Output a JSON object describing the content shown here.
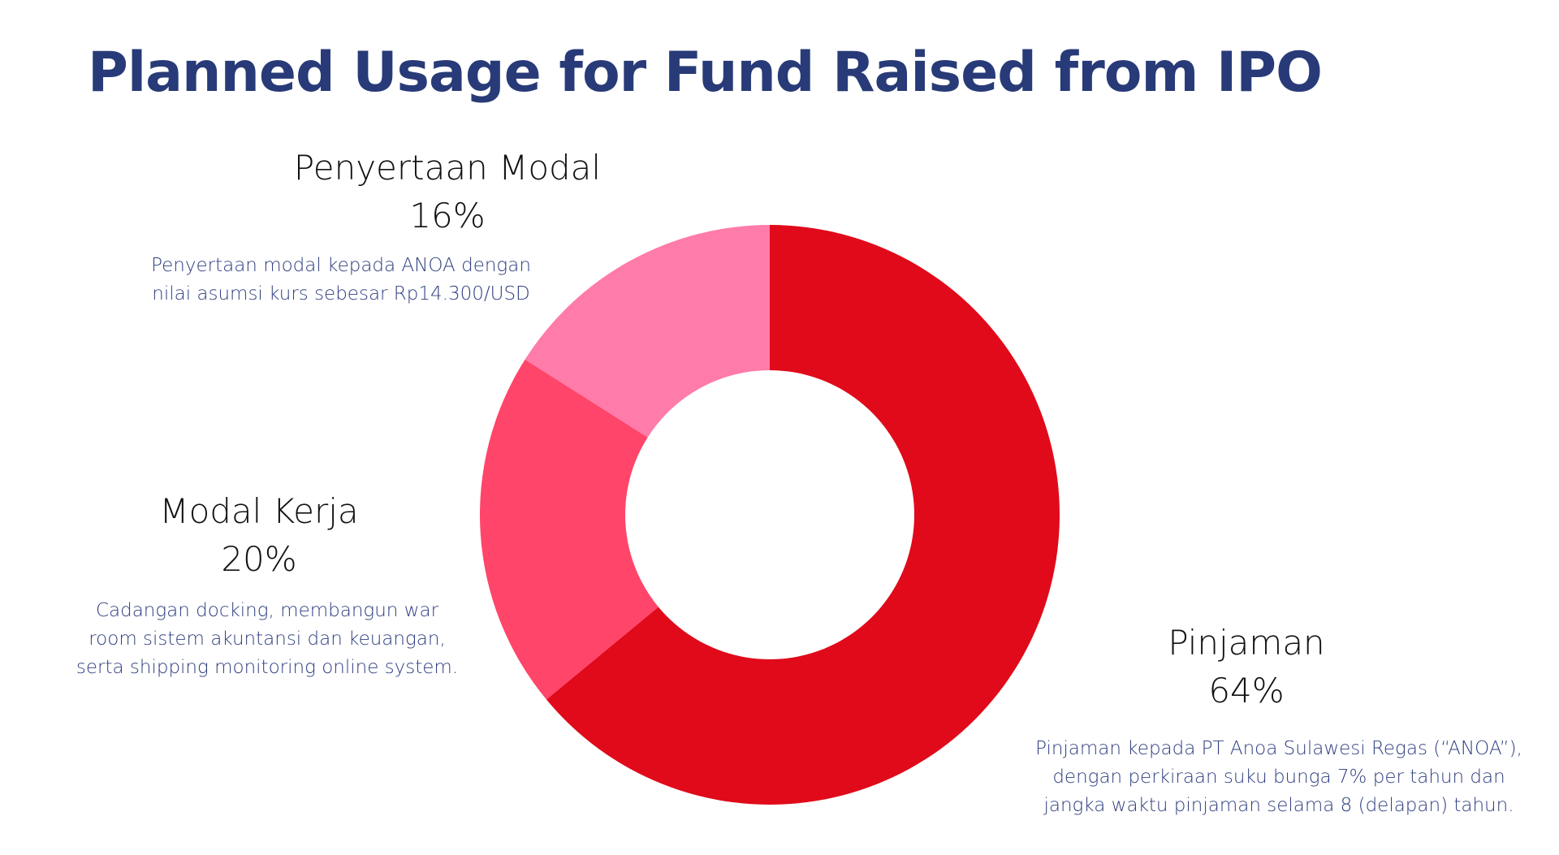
{
  "chart_data": {
    "type": "pie",
    "variant": "donut",
    "title": "Planned Usage for Fund Raised from IPO",
    "slices": [
      {
        "label": "Pinjaman",
        "value": 64,
        "value_label": "64%",
        "color": "#e00a1a",
        "description": [
          "Pinjaman kepada PT Anoa Sulawesi Regas (“ANOA”),",
          "dengan perkiraan suku bunga 7% per tahun dan",
          "jangka waktu pinjaman selama 8 (delapan) tahun."
        ]
      },
      {
        "label": "Modal Kerja",
        "value": 20,
        "value_label": "20%",
        "color": "#ff4569",
        "description": [
          "Cadangan docking, membangun war",
          "room sistem akuntansi dan keuangan,",
          "serta shipping monitoring online system."
        ]
      },
      {
        "label": "Penyertaan Modal",
        "value": 16,
        "value_label": "16%",
        "color": "#ff7baa",
        "description": [
          "Penyertaan modal kepada ANOA dengan",
          "nilai asumsi kurs sebesar Rp14.300/USD"
        ]
      }
    ]
  }
}
